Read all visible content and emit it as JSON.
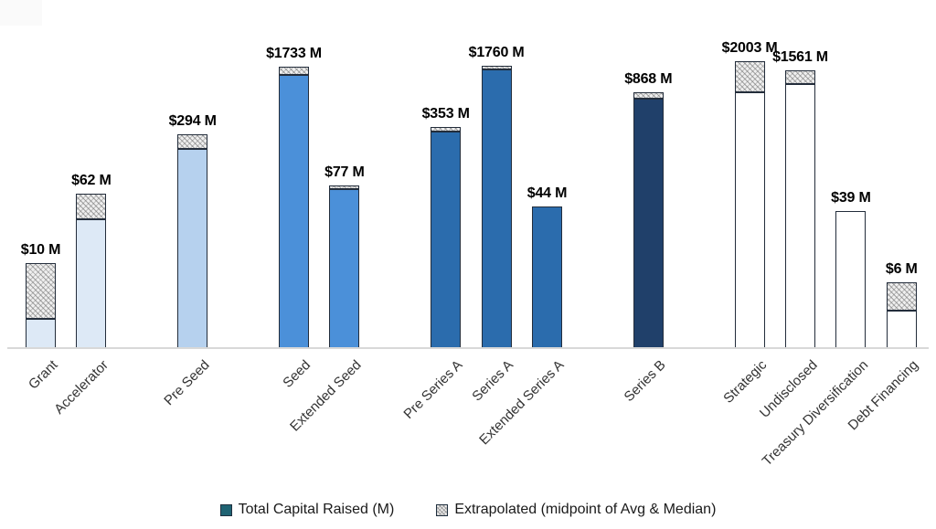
{
  "chart_data": {
    "type": "bar",
    "stacked": true,
    "y_scale": "log10",
    "grid": false,
    "legend_position": "bottom",
    "title": "",
    "xlabel": "",
    "ylabel": "",
    "series": [
      {
        "name": "Total Capital Raised (M)",
        "swatch": "solid",
        "color": "#1f6373"
      },
      {
        "name": "Extrapolated (midpoint of Avg & Median)",
        "swatch": "hatch",
        "color": "#ededed"
      }
    ],
    "bars": [
      {
        "category": "Grant",
        "label": "$10 M",
        "value_m": 10,
        "extrapolated_fraction": 0.66,
        "fill": "#dde9f6"
      },
      {
        "category": "Accelerator",
        "label": "$62 M",
        "value_m": 62,
        "extrapolated_fraction": 0.165,
        "fill": "#dde9f6"
      },
      {
        "category": "Pre Seed",
        "label": "$294 M",
        "value_m": 294,
        "extrapolated_fraction": 0.067,
        "fill": "#b6d1ee"
      },
      {
        "category": "Seed",
        "label": "$1733 M",
        "value_m": 1733,
        "extrapolated_fraction": 0.03,
        "fill": "#4b90d9"
      },
      {
        "category": "Extended Seed",
        "label": "$77 M",
        "value_m": 77,
        "extrapolated_fraction": 0.022,
        "fill": "#4b90d9"
      },
      {
        "category": "Pre Series A",
        "label": "$353 M",
        "value_m": 353,
        "extrapolated_fraction": 0.02,
        "fill": "#2b6cad"
      },
      {
        "category": "Series A",
        "label": "$1760 M",
        "value_m": 1760,
        "extrapolated_fraction": 0.013,
        "fill": "#2b6cad"
      },
      {
        "category": "Extended Series A",
        "label": "$44 M",
        "value_m": 44,
        "extrapolated_fraction": 0,
        "fill": "#2b6cad"
      },
      {
        "category": "Series B",
        "label": "$868 M",
        "value_m": 868,
        "extrapolated_fraction": 0.025,
        "fill": "#20406a"
      },
      {
        "category": "Strategic",
        "label": "$2003 M",
        "value_m": 2003,
        "extrapolated_fraction": 0.107,
        "fill": "#ffffff"
      },
      {
        "category": "Undisclosed",
        "label": "$1561 M",
        "value_m": 1561,
        "extrapolated_fraction": 0.049,
        "fill": "#ffffff"
      },
      {
        "category": "Treasury Diversification",
        "label": "$39 M",
        "value_m": 39,
        "extrapolated_fraction": 0,
        "fill": "#ffffff"
      },
      {
        "category": "Debt Financing",
        "label": "$6 M",
        "value_m": 6,
        "extrapolated_fraction": 0.43,
        "fill": "#ffffff"
      }
    ]
  }
}
